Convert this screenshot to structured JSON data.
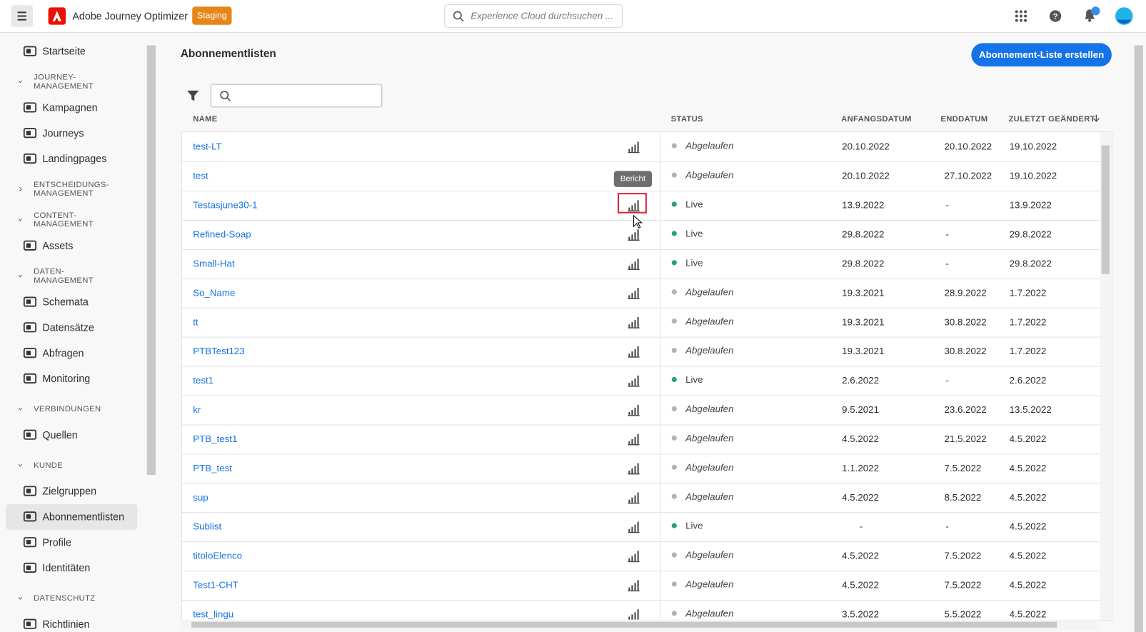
{
  "header": {
    "app_name": "Adobe Journey Optimizer",
    "badge": "Staging",
    "search_placeholder": "Experience Cloud durchsuchen ..."
  },
  "sidebar": [
    {
      "kind": "item",
      "label": "Startseite"
    },
    {
      "kind": "section",
      "label": "JOURNEY-MANAGEMENT"
    },
    {
      "kind": "item",
      "label": "Kampagnen"
    },
    {
      "kind": "item",
      "label": "Journeys"
    },
    {
      "kind": "item",
      "label": "Landingpages"
    },
    {
      "kind": "section-collapsed",
      "label": "ENTSCHEIDUNGS-MANAGEMENT"
    },
    {
      "kind": "section",
      "label": "CONTENT-MANAGEMENT"
    },
    {
      "kind": "item",
      "label": "Assets"
    },
    {
      "kind": "section",
      "label": "DATEN-MANAGEMENT"
    },
    {
      "kind": "item",
      "label": "Schemata"
    },
    {
      "kind": "item",
      "label": "Datensätze"
    },
    {
      "kind": "item",
      "label": "Abfragen"
    },
    {
      "kind": "item",
      "label": "Monitoring"
    },
    {
      "kind": "section",
      "label": "VERBINDUNGEN"
    },
    {
      "kind": "item",
      "label": "Quellen"
    },
    {
      "kind": "section",
      "label": "KUNDE"
    },
    {
      "kind": "item",
      "label": "Zielgruppen"
    },
    {
      "kind": "item-selected",
      "label": "Abonnementlisten"
    },
    {
      "kind": "item",
      "label": "Profile"
    },
    {
      "kind": "item",
      "label": "Identitäten"
    },
    {
      "kind": "section",
      "label": "DATENSCHUTZ"
    },
    {
      "kind": "item",
      "label": "Richtlinien"
    }
  ],
  "page": {
    "title": "Abonnementlisten",
    "create_button": "Abonnement-Liste erstellen",
    "tooltip": "Bericht"
  },
  "table": {
    "columns": [
      "NAME",
      "STATUS",
      "ANFANGSDATUM",
      "ENDDATUM",
      "ZULETZT GEÄNDERT"
    ],
    "rows": [
      {
        "name": "test-LT",
        "status": "Abgelaufen",
        "status_color": "#b3b3b3",
        "start": "20.10.2022",
        "end": "20.10.2022",
        "modified": "19.10.2022"
      },
      {
        "name": "test",
        "status": "Abgelaufen",
        "status_color": "#b3b3b3",
        "start": "20.10.2022",
        "end": "27.10.2022",
        "modified": "19.10.2022"
      },
      {
        "name": "Testasjune30-1",
        "status": "Live",
        "status_color": "#2d9d78",
        "start": "13.9.2022",
        "end": "-",
        "modified": "13.9.2022"
      },
      {
        "name": "Refined-Soap",
        "status": "Live",
        "status_color": "#2d9d78",
        "start": "29.8.2022",
        "end": "-",
        "modified": "29.8.2022"
      },
      {
        "name": "Small-Hat",
        "status": "Live",
        "status_color": "#2d9d78",
        "start": "29.8.2022",
        "end": "-",
        "modified": "29.8.2022"
      },
      {
        "name": "So_Name",
        "status": "Abgelaufen",
        "status_color": "#b3b3b3",
        "start": "19.3.2021",
        "end": "28.9.2022",
        "modified": "1.7.2022"
      },
      {
        "name": "tt",
        "status": "Abgelaufen",
        "status_color": "#b3b3b3",
        "start": "19.3.2021",
        "end": "30.8.2022",
        "modified": "1.7.2022"
      },
      {
        "name": "PTBTest123",
        "status": "Abgelaufen",
        "status_color": "#b3b3b3",
        "start": "19.3.2021",
        "end": "30.8.2022",
        "modified": "1.7.2022"
      },
      {
        "name": "test1",
        "status": "Live",
        "status_color": "#2d9d78",
        "start": "2.6.2022",
        "end": "-",
        "modified": "2.6.2022"
      },
      {
        "name": "kr",
        "status": "Abgelaufen",
        "status_color": "#b3b3b3",
        "start": "9.5.2021",
        "end": "23.6.2022",
        "modified": "13.5.2022"
      },
      {
        "name": "PTB_test1",
        "status": "Abgelaufen",
        "status_color": "#b3b3b3",
        "start": "4.5.2022",
        "end": "21.5.2022",
        "modified": "4.5.2022"
      },
      {
        "name": "PTB_test",
        "status": "Abgelaufen",
        "status_color": "#b3b3b3",
        "start": "1.1.2022",
        "end": "7.5.2022",
        "modified": "4.5.2022"
      },
      {
        "name": "sup",
        "status": "Abgelaufen",
        "status_color": "#b3b3b3",
        "start": "4.5.2022",
        "end": "8.5.2022",
        "modified": "4.5.2022"
      },
      {
        "name": "Sublist",
        "status": "Live",
        "status_color": "#2d9d78",
        "start": "-",
        "end": "-",
        "modified": "4.5.2022"
      },
      {
        "name": "titoloElenco",
        "status": "Abgelaufen",
        "status_color": "#b3b3b3",
        "start": "4.5.2022",
        "end": "7.5.2022",
        "modified": "4.5.2022"
      },
      {
        "name": "Test1-CHT",
        "status": "Abgelaufen",
        "status_color": "#b3b3b3",
        "start": "4.5.2022",
        "end": "7.5.2022",
        "modified": "4.5.2022"
      },
      {
        "name": "test_lingu",
        "status": "Abgelaufen",
        "status_color": "#b3b3b3",
        "start": "3.5.2022",
        "end": "5.5.2022",
        "modified": "4.5.2022"
      }
    ]
  }
}
